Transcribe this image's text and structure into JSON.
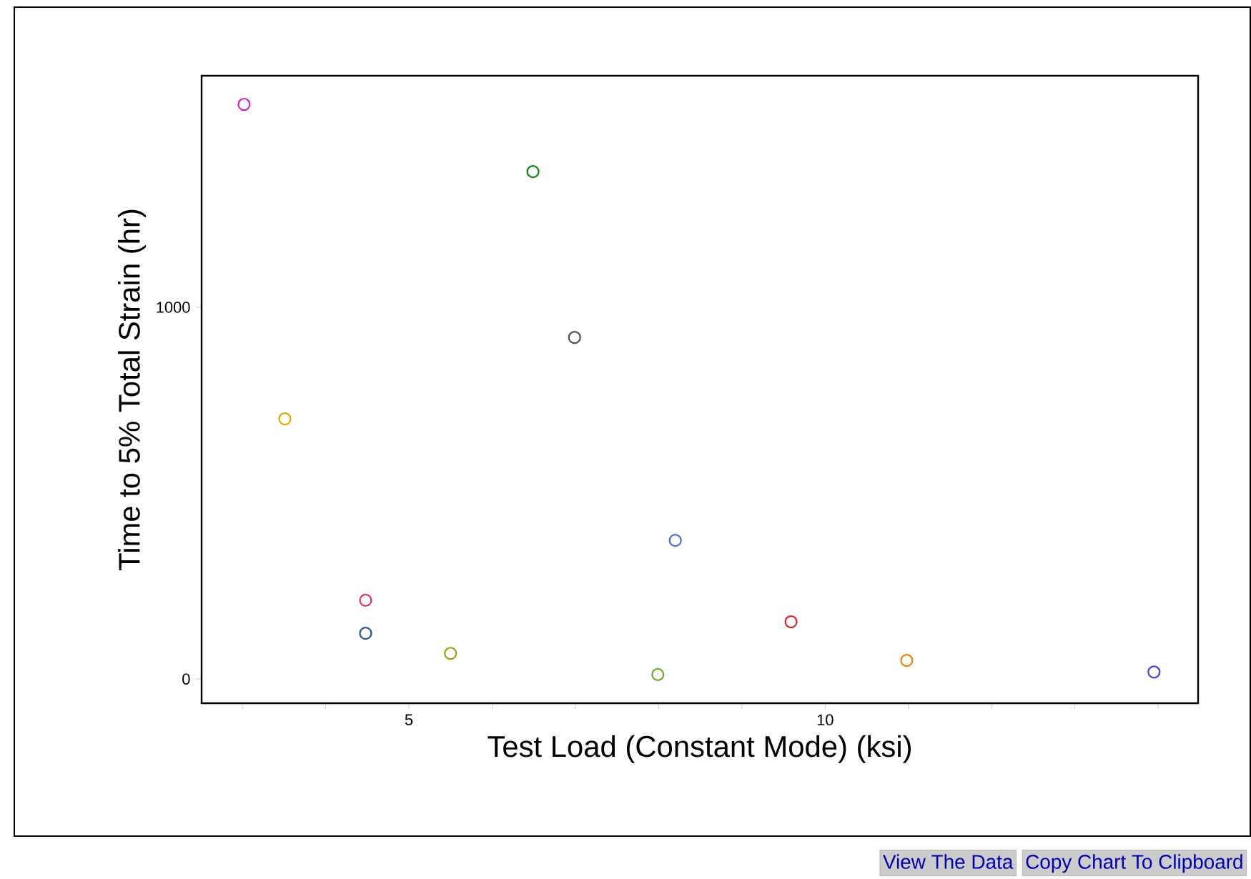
{
  "chart_data": {
    "type": "scatter",
    "xlabel": "Test Load (Constant Mode) (ksi)",
    "ylabel": "Time to 5% Total Strain (hr)",
    "x": [
      3.02,
      3.51,
      4.48,
      4.48,
      5.5,
      6.49,
      6.99,
      7.99,
      8.2,
      9.59,
      10.98,
      13.95
    ],
    "values": [
      1546,
      700,
      212,
      123,
      69,
      1365,
      919,
      12,
      373,
      154,
      50,
      19
    ],
    "colors": [
      "#d020c0",
      "#e0a800",
      "#e03060",
      "#305090",
      "#a0a000",
      "#108010",
      "#505050",
      "#60b020",
      "#4070e0",
      "#e02020",
      "#f08000",
      "#4040e0"
    ],
    "xlim": [
      2.51,
      14.48
    ],
    "ylim": [
      -65,
      1623
    ],
    "xticks": [
      {
        "value": 3,
        "label": null
      },
      {
        "value": 4,
        "label": null
      },
      5,
      {
        "value": 6,
        "label": null
      },
      {
        "value": 7,
        "label": null
      },
      {
        "value": 8,
        "label": null
      },
      {
        "value": 9,
        "label": null
      },
      10,
      {
        "value": 11,
        "label": null
      },
      {
        "value": 12,
        "label": null
      },
      {
        "value": 13,
        "label": null
      },
      {
        "value": 14,
        "label": null
      }
    ],
    "yticks": [
      0,
      1000
    ],
    "marker": "circle",
    "grid": false,
    "annotations": [
      "View The Data",
      "Copy Chart To Clipboard"
    ]
  }
}
